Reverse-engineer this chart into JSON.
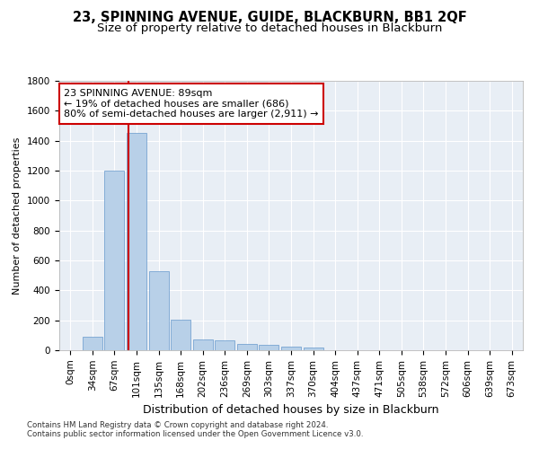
{
  "title": "23, SPINNING AVENUE, GUIDE, BLACKBURN, BB1 2QF",
  "subtitle": "Size of property relative to detached houses in Blackburn",
  "xlabel": "Distribution of detached houses by size in Blackburn",
  "ylabel": "Number of detached properties",
  "footnote1": "Contains HM Land Registry data © Crown copyright and database right 2024.",
  "footnote2": "Contains public sector information licensed under the Open Government Licence v3.0.",
  "bin_labels": [
    "0sqm",
    "34sqm",
    "67sqm",
    "101sqm",
    "135sqm",
    "168sqm",
    "202sqm",
    "236sqm",
    "269sqm",
    "303sqm",
    "337sqm",
    "370sqm",
    "404sqm",
    "437sqm",
    "471sqm",
    "505sqm",
    "538sqm",
    "572sqm",
    "606sqm",
    "639sqm",
    "673sqm"
  ],
  "bar_values": [
    0,
    90,
    1200,
    1450,
    530,
    205,
    70,
    65,
    45,
    35,
    25,
    20,
    0,
    0,
    0,
    0,
    0,
    0,
    0,
    0,
    0
  ],
  "bar_color": "#b8d0e8",
  "bar_edgecolor": "#6699cc",
  "vline_x_index": 2.62,
  "vline_color": "#cc0000",
  "annotation_text": "23 SPINNING AVENUE: 89sqm\n← 19% of detached houses are smaller (686)\n80% of semi-detached houses are larger (2,911) →",
  "annotation_box_facecolor": "#ffffff",
  "annotation_box_edgecolor": "#cc0000",
  "ylim": [
    0,
    1800
  ],
  "yticks": [
    0,
    200,
    400,
    600,
    800,
    1000,
    1200,
    1400,
    1600,
    1800
  ],
  "plot_bg_color": "#e8eef5",
  "title_fontsize": 10.5,
  "subtitle_fontsize": 9.5,
  "ylabel_fontsize": 8,
  "xlabel_fontsize": 9,
  "tick_fontsize": 7.5,
  "annotation_fontsize": 8,
  "footnote_fontsize": 6.2
}
